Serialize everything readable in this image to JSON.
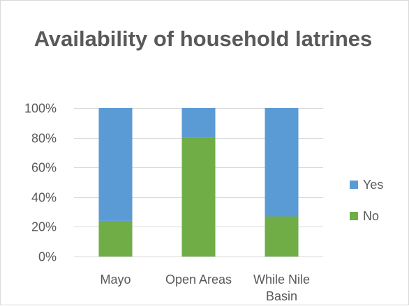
{
  "chart_data": {
    "type": "bar",
    "stacked": true,
    "title": "Availability of household latrines",
    "categories": [
      "Mayo",
      "Open Areas",
      "While Nile Basin"
    ],
    "series": [
      {
        "name": "No",
        "color": "#70ad47",
        "values": [
          24,
          80,
          27
        ]
      },
      {
        "name": "Yes",
        "color": "#5b9bd5",
        "values": [
          76,
          20,
          73
        ]
      }
    ],
    "ylim": [
      0,
      100
    ],
    "yticks": [
      "0%",
      "20%",
      "40%",
      "60%",
      "80%",
      "100%"
    ],
    "grid": true,
    "legend_position": "right",
    "legend_order": [
      "Yes",
      "No"
    ]
  }
}
